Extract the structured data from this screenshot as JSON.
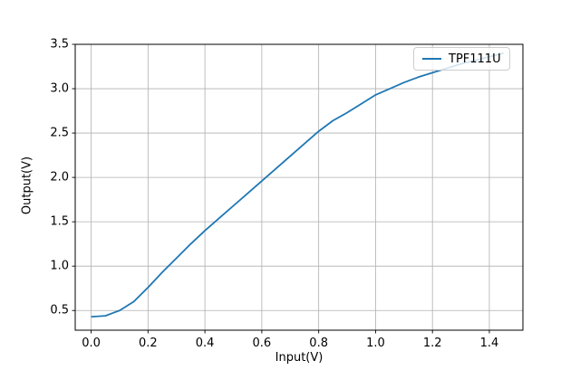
{
  "figure": {
    "background": "#ffffff"
  },
  "chart_data": {
    "type": "line",
    "title": "",
    "xlabel": "Input(V)",
    "ylabel": "Output(V)",
    "xlim": [
      -0.056,
      1.518
    ],
    "ylim": [
      0.278,
      3.5
    ],
    "grid": true,
    "legend": {
      "position": "upper right",
      "entries": [
        {
          "label": "TPF111U",
          "color": "#1f77b4"
        }
      ]
    },
    "xticks": {
      "values": [
        0.0,
        0.2,
        0.4,
        0.6,
        0.8,
        1.0,
        1.2,
        1.4
      ],
      "labels": [
        "0.0",
        "0.2",
        "0.4",
        "0.6",
        "0.8",
        "1.0",
        "1.2",
        "1.4"
      ]
    },
    "yticks": {
      "values": [
        0.5,
        1.0,
        1.5,
        2.0,
        2.5,
        3.0,
        3.5
      ],
      "labels": [
        "0.5",
        "1.0",
        "1.5",
        "2.0",
        "2.5",
        "3.0",
        "3.5"
      ]
    },
    "series": [
      {
        "name": "TPF111U",
        "color": "#1f77b4",
        "line_width": 1.8,
        "x": [
          0.0,
          0.05,
          0.1,
          0.15,
          0.2,
          0.25,
          0.3,
          0.35,
          0.4,
          0.45,
          0.5,
          0.55,
          0.6,
          0.65,
          0.7,
          0.75,
          0.8,
          0.85,
          0.9,
          0.95,
          1.0,
          1.05,
          1.1,
          1.15,
          1.2,
          1.25,
          1.3,
          1.35,
          1.4,
          1.45
        ],
        "y": [
          0.43,
          0.44,
          0.5,
          0.6,
          0.76,
          0.93,
          1.09,
          1.25,
          1.4,
          1.54,
          1.68,
          1.82,
          1.96,
          2.1,
          2.24,
          2.38,
          2.52,
          2.64,
          2.73,
          2.83,
          2.93,
          3.0,
          3.07,
          3.13,
          3.18,
          3.23,
          3.28,
          3.32,
          3.36,
          3.4
        ]
      }
    ],
    "colors": {
      "grid": "#b0b0b0",
      "frame": "#000000",
      "tick": "#000000",
      "legend_border": "#cccccc"
    }
  }
}
